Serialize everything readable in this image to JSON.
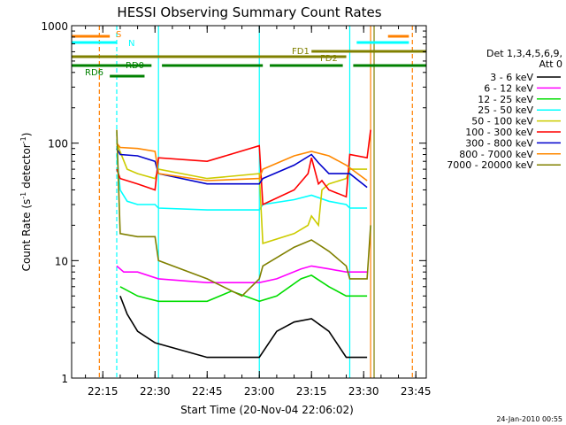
{
  "chart_data": {
    "type": "line",
    "title": "HESSI Observing Summary Count Rates",
    "xlabel": "Start Time (20-Nov-04 22:06:02)",
    "ylabel": "Count Rate (s⁻¹ detector⁻¹)",
    "ylabel_parts": {
      "pre": "Count Rate (s",
      "sup1": "-1",
      "mid": " detector",
      "sup2": "-1",
      "post": ")"
    },
    "yscale": "log",
    "xlim": [
      "22:06:02",
      "23:48:00"
    ],
    "ylim": [
      1,
      1000
    ],
    "x_ticks": [
      "22:15",
      "22:30",
      "22:45",
      "23:00",
      "23:15",
      "23:30",
      "23:45"
    ],
    "y_ticks": [
      "1",
      "10",
      "100",
      "1000"
    ],
    "legend_title": [
      "Det 1,3,4,5,6,9,",
      "Att 0"
    ],
    "legend_position": "right",
    "footer": "24-Jan-2010 00:55",
    "series": [
      {
        "name": "3 - 6 keV",
        "color": "#000000",
        "x": [
          "22:20",
          "22:22",
          "22:25",
          "22:30",
          "22:45",
          "23:00",
          "23:05",
          "23:10",
          "23:15",
          "23:20",
          "23:25",
          "23:28",
          "23:31"
        ],
        "y": [
          5,
          3.5,
          2.5,
          2,
          1.5,
          1.5,
          2.5,
          3,
          3.2,
          2.5,
          1.5,
          1.5,
          1.5
        ]
      },
      {
        "name": "6 - 12 keV",
        "color": "#ff00ff",
        "x": [
          "22:19",
          "22:21",
          "22:25",
          "22:31",
          "22:45",
          "23:00",
          "23:05",
          "23:12",
          "23:15",
          "23:20",
          "23:25",
          "23:31"
        ],
        "y": [
          9,
          8,
          8,
          7,
          6.5,
          6.5,
          7,
          8.5,
          9,
          8.5,
          8,
          8
        ]
      },
      {
        "name": "12 - 25 keV",
        "color": "#00dd00",
        "x": [
          "22:20",
          "22:25",
          "22:31",
          "22:45",
          "22:52",
          "23:00",
          "23:05",
          "23:12",
          "23:15",
          "23:20",
          "23:25",
          "23:31"
        ],
        "y": [
          6,
          5,
          4.5,
          4.5,
          5.5,
          4.5,
          5,
          7,
          7.5,
          6,
          5,
          5
        ]
      },
      {
        "name": "25 - 50 keV",
        "color": "#00ffff",
        "x": [
          "22:19",
          "22:20",
          "22:22",
          "22:25",
          "22:30",
          "22:31",
          "22:45",
          "23:00",
          "23:01",
          "23:10",
          "23:15",
          "23:20",
          "23:25",
          "23:26",
          "23:31"
        ],
        "y": [
          80,
          40,
          32,
          30,
          30,
          28,
          27,
          27,
          30,
          33,
          36,
          32,
          30,
          28,
          28
        ]
      },
      {
        "name": "50 - 100 keV",
        "color": "#cccc00",
        "x": [
          "22:19",
          "22:22",
          "22:25",
          "22:30",
          "22:31",
          "22:45",
          "23:00",
          "23:01",
          "23:10",
          "23:14",
          "23:15",
          "23:17",
          "23:18",
          "23:20",
          "23:25",
          "23:26",
          "23:31"
        ],
        "y": [
          100,
          60,
          55,
          50,
          60,
          50,
          55,
          14,
          17,
          20,
          24,
          20,
          40,
          45,
          50,
          60,
          60
        ]
      },
      {
        "name": "100 - 300 keV",
        "color": "#ff0000",
        "x": [
          "22:19",
          "22:20",
          "22:25",
          "22:30",
          "22:31",
          "22:45",
          "23:00",
          "23:01",
          "23:10",
          "23:14",
          "23:15",
          "23:17",
          "23:18",
          "23:20",
          "23:25",
          "23:26",
          "23:31",
          "23:32"
        ],
        "y": [
          60,
          50,
          45,
          40,
          75,
          70,
          95,
          30,
          40,
          55,
          75,
          45,
          48,
          40,
          35,
          80,
          75,
          130
        ]
      },
      {
        "name": "300 - 800 keV",
        "color": "#0000cc",
        "x": [
          "22:19",
          "22:20",
          "22:25",
          "22:30",
          "22:31",
          "22:45",
          "23:00",
          "23:01",
          "23:10",
          "23:15",
          "23:17",
          "23:20",
          "23:25",
          "23:26",
          "23:31"
        ],
        "y": [
          90,
          80,
          78,
          70,
          55,
          45,
          45,
          50,
          65,
          80,
          68,
          55,
          55,
          55,
          42
        ]
      },
      {
        "name": "800 - 7000 keV",
        "color": "#ff8800",
        "x": [
          "22:19",
          "22:20",
          "22:25",
          "22:30",
          "22:31",
          "22:45",
          "23:00",
          "23:01",
          "23:10",
          "23:15",
          "23:20",
          "23:25",
          "23:31"
        ],
        "y": [
          100,
          92,
          90,
          85,
          55,
          48,
          50,
          60,
          78,
          85,
          78,
          65,
          48
        ]
      },
      {
        "name": "7000 - 20000 keV",
        "color": "#808000",
        "x": [
          "22:19",
          "22:20",
          "22:25",
          "22:30",
          "22:31",
          "22:45",
          "22:55",
          "23:00",
          "23:01",
          "23:10",
          "23:15",
          "23:20",
          "23:25",
          "23:26",
          "23:31",
          "23:32"
        ],
        "y": [
          130,
          17,
          16,
          16,
          10,
          7,
          5,
          7,
          9,
          13,
          15,
          12,
          9,
          7,
          7,
          20
        ]
      }
    ],
    "flags": [
      {
        "label": "S",
        "color": "#ff8000",
        "segments": [
          [
            "22:06:02",
            "22:17"
          ],
          [
            "23:37",
            "23:43"
          ]
        ]
      },
      {
        "label": "N",
        "color": "#00ffff",
        "segments": [
          [
            "22:06:02",
            "22:19"
          ],
          [
            "23:28",
            "23:43"
          ]
        ]
      },
      {
        "label": "FD1",
        "color": "#808000",
        "segments": [
          [
            "22:06:02",
            "23:25"
          ]
        ]
      },
      {
        "label": "FD2",
        "color": "#808000",
        "segments": [
          [
            "23:15",
            "23:48"
          ]
        ]
      },
      {
        "label": "RD0",
        "color": "#008000",
        "segments": [
          [
            "22:06:02",
            "22:29"
          ],
          [
            "22:32",
            "23:01"
          ],
          [
            "23:03",
            "23:24"
          ],
          [
            "23:27",
            "23:48"
          ]
        ]
      },
      {
        "label": "RD6",
        "color": "#008000",
        "segments": [
          [
            "22:17",
            "22:27"
          ]
        ]
      }
    ],
    "vertical_markers": [
      {
        "color": "#ff8000",
        "style": "dashed",
        "x": [
          "22:14",
          "23:44"
        ]
      },
      {
        "color": "#00ffff",
        "style": "dashed",
        "x": [
          "22:19"
        ]
      },
      {
        "color": "#00ffff",
        "style": "solid",
        "x": [
          "22:06",
          "22:31",
          "23:00",
          "23:26"
        ]
      },
      {
        "color": "#ff8000",
        "style": "solid",
        "x": [
          "23:32"
        ]
      },
      {
        "color": "#808000",
        "style": "solid",
        "x": [
          "23:33"
        ]
      }
    ]
  }
}
